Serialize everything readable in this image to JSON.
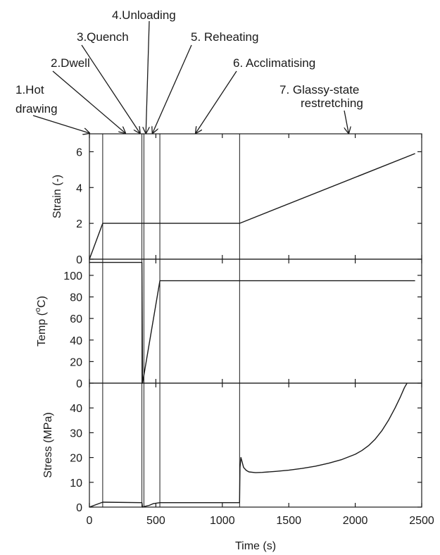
{
  "annotations": [
    {
      "label": "1.Hot",
      "label2": "drawing",
      "x": 0
    },
    {
      "label": "2.Dwell",
      "x": 270
    },
    {
      "label": "3.Quench",
      "x": 380
    },
    {
      "label": "4.Unloading",
      "x": 425
    },
    {
      "label": "5. Reheating",
      "x": 475
    },
    {
      "label": "6. Acclimatising",
      "x": 800
    },
    {
      "label": "7. Glassy-state",
      "label2": "restretching",
      "x": 1950
    }
  ],
  "phase_boundaries": [
    100,
    395,
    410,
    530,
    1130
  ],
  "chart_data": [
    {
      "type": "line",
      "name": "strain",
      "ylabel": "Strain (-)",
      "ylim": [
        0,
        7
      ],
      "yticks": [
        0,
        2,
        4,
        6
      ],
      "xlim": [
        0,
        2500
      ],
      "series": [
        {
          "x": [
            0,
            100,
            1130,
            2450
          ],
          "y": [
            0,
            2,
            2,
            5.9
          ]
        }
      ]
    },
    {
      "type": "line",
      "name": "temp",
      "ylabel": "Temp (°C)",
      "ylabel_main": "Temp (",
      "ylabel_sup": "o",
      "ylabel_end": "C)",
      "ylim": [
        0,
        115
      ],
      "yticks": [
        0,
        20,
        40,
        60,
        80,
        100
      ],
      "xlim": [
        0,
        2500
      ],
      "series": [
        {
          "x": [
            0,
            395,
            400,
            530,
            2450
          ],
          "y": [
            112,
            112,
            0,
            95,
            95
          ]
        }
      ]
    },
    {
      "type": "line",
      "name": "stress",
      "ylabel": "Stress (MPa)",
      "xlabel": "Time (s)",
      "ylim": [
        0,
        50
      ],
      "yticks": [
        0,
        10,
        20,
        30,
        40
      ],
      "xlim": [
        0,
        2500
      ],
      "xticks": [
        0,
        500,
        1000,
        1500,
        2000,
        2500
      ],
      "series": [
        {
          "x": [
            0,
            100,
            395,
            400,
            410,
            450,
            480,
            530,
            1130,
            1133,
            1140,
            1150,
            1160,
            1180,
            1200,
            1250,
            1300,
            1400,
            1500,
            1600,
            1700,
            1800,
            1900,
            2000,
            2050,
            2100,
            2150,
            2200,
            2250,
            2300,
            2340,
            2370,
            2390
          ],
          "y": [
            0,
            2,
            1.8,
            0,
            0.2,
            0.7,
            1.4,
            1.8,
            1.8,
            16,
            20,
            18,
            16,
            14.8,
            14.2,
            13.9,
            14.0,
            14.4,
            14.9,
            15.6,
            16.5,
            17.7,
            19.2,
            21.3,
            22.8,
            24.8,
            27.4,
            30.8,
            35.0,
            40.0,
            44.5,
            48.2,
            50
          ]
        }
      ]
    }
  ]
}
